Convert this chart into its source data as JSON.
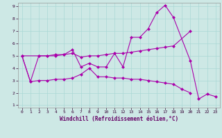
{
  "bg_color": "#cde8e5",
  "line_color": "#aa00aa",
  "grid_color": "#aad8d4",
  "xlabel": "Windchill (Refroidissement éolien,°C)",
  "xlim_min": -0.5,
  "xlim_max": 23.5,
  "ylim_min": 0.8,
  "ylim_max": 9.3,
  "xticks": [
    0,
    1,
    2,
    3,
    4,
    5,
    6,
    7,
    8,
    9,
    10,
    11,
    12,
    13,
    14,
    15,
    16,
    17,
    18,
    19,
    20,
    21,
    22,
    23
  ],
  "yticks": [
    1,
    2,
    3,
    4,
    5,
    6,
    7,
    8,
    9
  ],
  "seriesA_x": [
    0,
    1,
    2,
    3,
    4,
    5,
    6,
    7,
    8,
    9,
    10,
    11,
    12,
    13,
    14,
    15,
    16,
    17,
    18,
    20,
    21,
    22,
    23
  ],
  "seriesA_y": [
    5.0,
    2.9,
    5.0,
    5.0,
    5.0,
    5.1,
    5.5,
    4.1,
    4.4,
    4.1,
    4.1,
    5.2,
    4.1,
    6.5,
    6.5,
    7.2,
    8.5,
    9.1,
    8.1,
    4.6,
    1.5,
    1.9,
    1.7
  ],
  "seriesB_x": [
    0,
    2,
    3,
    4,
    5,
    6,
    7,
    8,
    9,
    10,
    11,
    12,
    13,
    14,
    15,
    16,
    17,
    18,
    20
  ],
  "seriesB_y": [
    5.0,
    5.0,
    5.0,
    5.1,
    5.1,
    5.2,
    4.9,
    5.0,
    5.0,
    5.1,
    5.2,
    5.2,
    5.3,
    5.4,
    5.5,
    5.6,
    5.7,
    5.8,
    7.0
  ],
  "seriesC_x": [
    0,
    1,
    2,
    3,
    4,
    5,
    6,
    7,
    8,
    9,
    10,
    11,
    12,
    13,
    14,
    15,
    16,
    17,
    18,
    19,
    20
  ],
  "seriesC_y": [
    5.0,
    2.9,
    3.0,
    3.0,
    3.1,
    3.1,
    3.2,
    3.5,
    4.0,
    3.3,
    3.3,
    3.2,
    3.2,
    3.1,
    3.1,
    3.0,
    2.9,
    2.8,
    2.7,
    2.3,
    2.0
  ]
}
